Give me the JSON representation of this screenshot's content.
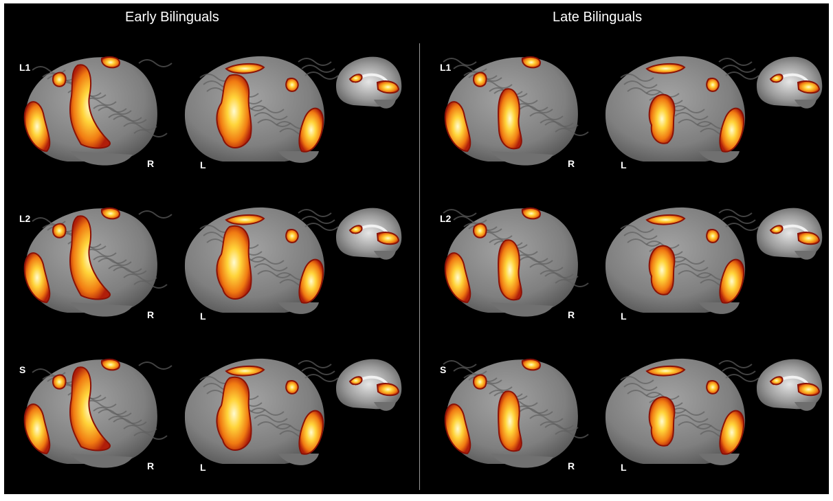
{
  "figure": {
    "group_titles": [
      "Early Bilinguals",
      "Late Bilinguals"
    ],
    "row_labels": [
      "L1",
      "L2",
      "S"
    ],
    "hemisphere_labels": {
      "right": "R",
      "left": "L"
    }
  },
  "colors": {
    "background": "#000000",
    "brain_gray": "#8d8d8d",
    "activation_dark": "#b01e0a",
    "activation_mid": "#f07a12",
    "activation_hot": "#ffd43a",
    "activation_peak": "#fffbd0",
    "divider": "#9a9a9a"
  }
}
